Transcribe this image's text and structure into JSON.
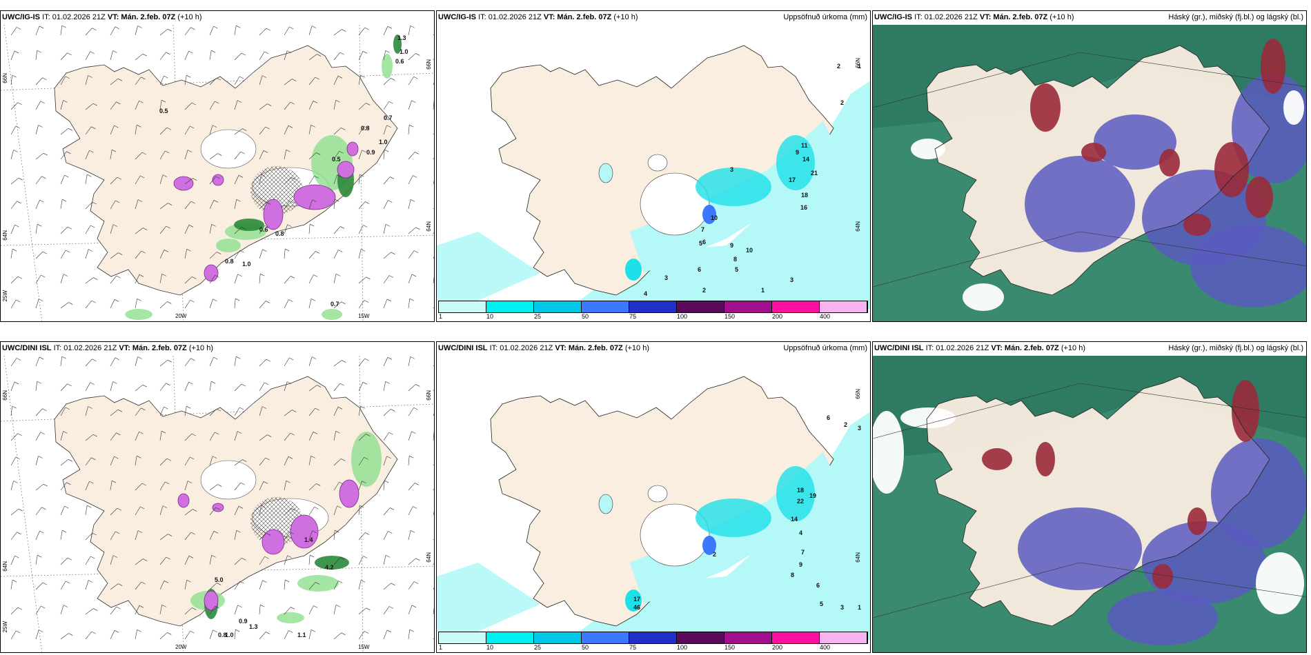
{
  "panels": [
    {
      "model": "UWC/IG-IS",
      "it": "IT: 01.02.2026 21Z",
      "vt_label": "VT:",
      "vt": "Mán. 2.feb. 07Z",
      "lead": "(+10 h)",
      "right": ""
    },
    {
      "model": "UWC/IG-IS",
      "it": "IT: 01.02.2026 21Z",
      "vt_label": "VT:",
      "vt": "Mán. 2.feb. 07Z",
      "lead": "(+10 h)",
      "right": "Uppsöfnuð úrkoma (mm)"
    },
    {
      "model": "UWC/IG-IS",
      "it": "IT: 01.02.2026 21Z",
      "vt_label": "VT:",
      "vt": "Mán. 2.feb. 07Z",
      "lead": "(+10 h)",
      "right": "Háský (gr.), miðský (fj.bl.) og lágský (bl.)"
    },
    {
      "model": "UWC/DINI ISL",
      "it": "IT: 01.02.2026 21Z",
      "vt_label": "VT:",
      "vt": "Mán. 2.feb. 07Z",
      "lead": "(+10 h)",
      "right": ""
    },
    {
      "model": "UWC/DINI ISL",
      "it": "IT: 01.02.2026 21Z",
      "vt_label": "VT:",
      "vt": "Mán. 2.feb. 07Z",
      "lead": "(+10 h)",
      "right": "Uppsöfnuð úrkoma (mm)"
    },
    {
      "model": "UWC/DINI ISL",
      "it": "IT: 01.02.2026 21Z",
      "vt_label": "VT:",
      "vt": "Mán. 2.feb. 07Z",
      "lead": "(+10 h)",
      "right": "Háský (gr.), miðský (fj.bl.) og lágský (bl.)"
    }
  ],
  "grid_labels": {
    "lat_66": "66N",
    "lat_64": "64N",
    "lon_25": "25W",
    "lon_20": "20W",
    "lon_15": "15W"
  },
  "legend": {
    "labels": [
      "1",
      "10",
      "25",
      "50",
      "75",
      "100",
      "150",
      "200",
      "400"
    ],
    "colors": [
      "#c8fafa",
      "#00f0f0",
      "#00c8e6",
      "#3c78ff",
      "#2030c8",
      "#5a0a5a",
      "#a0108c",
      "#ff10a0",
      "#f8b4f0"
    ]
  },
  "colors": {
    "land": "#faeee0",
    "precip_light": "#b4f8f8",
    "precip_mid": "#1ee0e8",
    "snow": "#d070e0",
    "wind_green": "#2a8a3a",
    "cloud_high": "#9a2a3a",
    "cloud_mid": "#5a5ac0",
    "cloud_low": "#4aa088"
  },
  "wind_values_top": [
    "1.3",
    "1.0",
    "0.6",
    "0.5",
    "0.7",
    "0.8",
    "1.0",
    "0.5",
    "0.9",
    "0.6",
    "0.8",
    "0.8",
    "1.0",
    "0.7"
  ],
  "precip_values_top": [
    "2",
    "1",
    "2",
    "3",
    "11",
    "9",
    "14",
    "17",
    "21",
    "18",
    "16",
    "10",
    "7",
    "6",
    "5",
    "9",
    "10",
    "8",
    "6",
    "5",
    "3",
    "1",
    "2",
    "3",
    "4"
  ],
  "wind_values_bot": [
    "0.9",
    "1.3",
    "1.1",
    "0.8",
    "1.0",
    "4.2",
    "1.4",
    "5.0"
  ],
  "precip_values_bot": [
    "2",
    "3",
    "6",
    "18",
    "19",
    "22",
    "14",
    "4",
    "7",
    "9",
    "8",
    "6",
    "5",
    "3",
    "1",
    "2",
    "17",
    "46"
  ]
}
